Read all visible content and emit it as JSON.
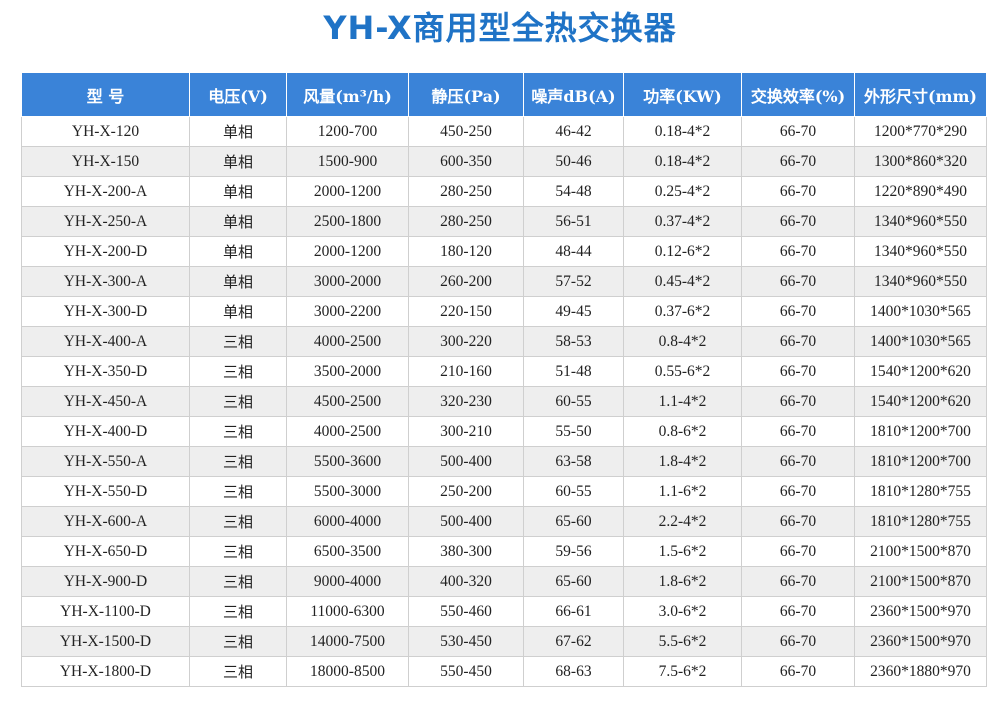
{
  "title": "YH-X商用型全热交换器",
  "colors": {
    "title": "#1f73c6",
    "header_bg": "#3a83d8",
    "header_text": "#ffffff",
    "stripe": "#eeeeee",
    "border": "#cfcfcf"
  },
  "table": {
    "headers": [
      "型 号",
      "电压(V)",
      "风量(m³/h)",
      "静压(Pa)",
      "噪声dB(A)",
      "功率(KW)",
      "交换效率(%)",
      "外形尺寸(mm)"
    ],
    "rows": [
      [
        "YH-X-120",
        "单相",
        "1200-700",
        "450-250",
        "46-42",
        "0.18-4*2",
        "66-70",
        "1200*770*290"
      ],
      [
        "YH-X-150",
        "单相",
        "1500-900",
        "600-350",
        "50-46",
        "0.18-4*2",
        "66-70",
        "1300*860*320"
      ],
      [
        "YH-X-200-A",
        "单相",
        "2000-1200",
        "280-250",
        "54-48",
        "0.25-4*2",
        "66-70",
        "1220*890*490"
      ],
      [
        "YH-X-250-A",
        "单相",
        "2500-1800",
        "280-250",
        "56-51",
        "0.37-4*2",
        "66-70",
        "1340*960*550"
      ],
      [
        "YH-X-200-D",
        "单相",
        "2000-1200",
        "180-120",
        "48-44",
        "0.12-6*2",
        "66-70",
        "1340*960*550"
      ],
      [
        "YH-X-300-A",
        "单相",
        "3000-2000",
        "260-200",
        "57-52",
        "0.45-4*2",
        "66-70",
        "1340*960*550"
      ],
      [
        "YH-X-300-D",
        "单相",
        "3000-2200",
        "220-150",
        "49-45",
        "0.37-6*2",
        "66-70",
        "1400*1030*565"
      ],
      [
        "YH-X-400-A",
        "三相",
        "4000-2500",
        "300-220",
        "58-53",
        "0.8-4*2",
        "66-70",
        "1400*1030*565"
      ],
      [
        "YH-X-350-D",
        "三相",
        "3500-2000",
        "210-160",
        "51-48",
        "0.55-6*2",
        "66-70",
        "1540*1200*620"
      ],
      [
        "YH-X-450-A",
        "三相",
        "4500-2500",
        "320-230",
        "60-55",
        "1.1-4*2",
        "66-70",
        "1540*1200*620"
      ],
      [
        "YH-X-400-D",
        "三相",
        "4000-2500",
        "300-210",
        "55-50",
        "0.8-6*2",
        "66-70",
        "1810*1200*700"
      ],
      [
        "YH-X-550-A",
        "三相",
        "5500-3600",
        "500-400",
        "63-58",
        "1.8-4*2",
        "66-70",
        "1810*1200*700"
      ],
      [
        "YH-X-550-D",
        "三相",
        "5500-3000",
        "250-200",
        "60-55",
        "1.1-6*2",
        "66-70",
        "1810*1280*755"
      ],
      [
        "YH-X-600-A",
        "三相",
        "6000-4000",
        "500-400",
        "65-60",
        "2.2-4*2",
        "66-70",
        "1810*1280*755"
      ],
      [
        "YH-X-650-D",
        "三相",
        "6500-3500",
        "380-300",
        "59-56",
        "1.5-6*2",
        "66-70",
        "2100*1500*870"
      ],
      [
        "YH-X-900-D",
        "三相",
        "9000-4000",
        "400-320",
        "65-60",
        "1.8-6*2",
        "66-70",
        "2100*1500*870"
      ],
      [
        "YH-X-1100-D",
        "三相",
        "11000-6300",
        "550-460",
        "66-61",
        "3.0-6*2",
        "66-70",
        "2360*1500*970"
      ],
      [
        "YH-X-1500-D",
        "三相",
        "14000-7500",
        "530-450",
        "67-62",
        "5.5-6*2",
        "66-70",
        "2360*1500*970"
      ],
      [
        "YH-X-1800-D",
        "三相",
        "18000-8500",
        "550-450",
        "68-63",
        "7.5-6*2",
        "66-70",
        "2360*1880*970"
      ]
    ]
  }
}
